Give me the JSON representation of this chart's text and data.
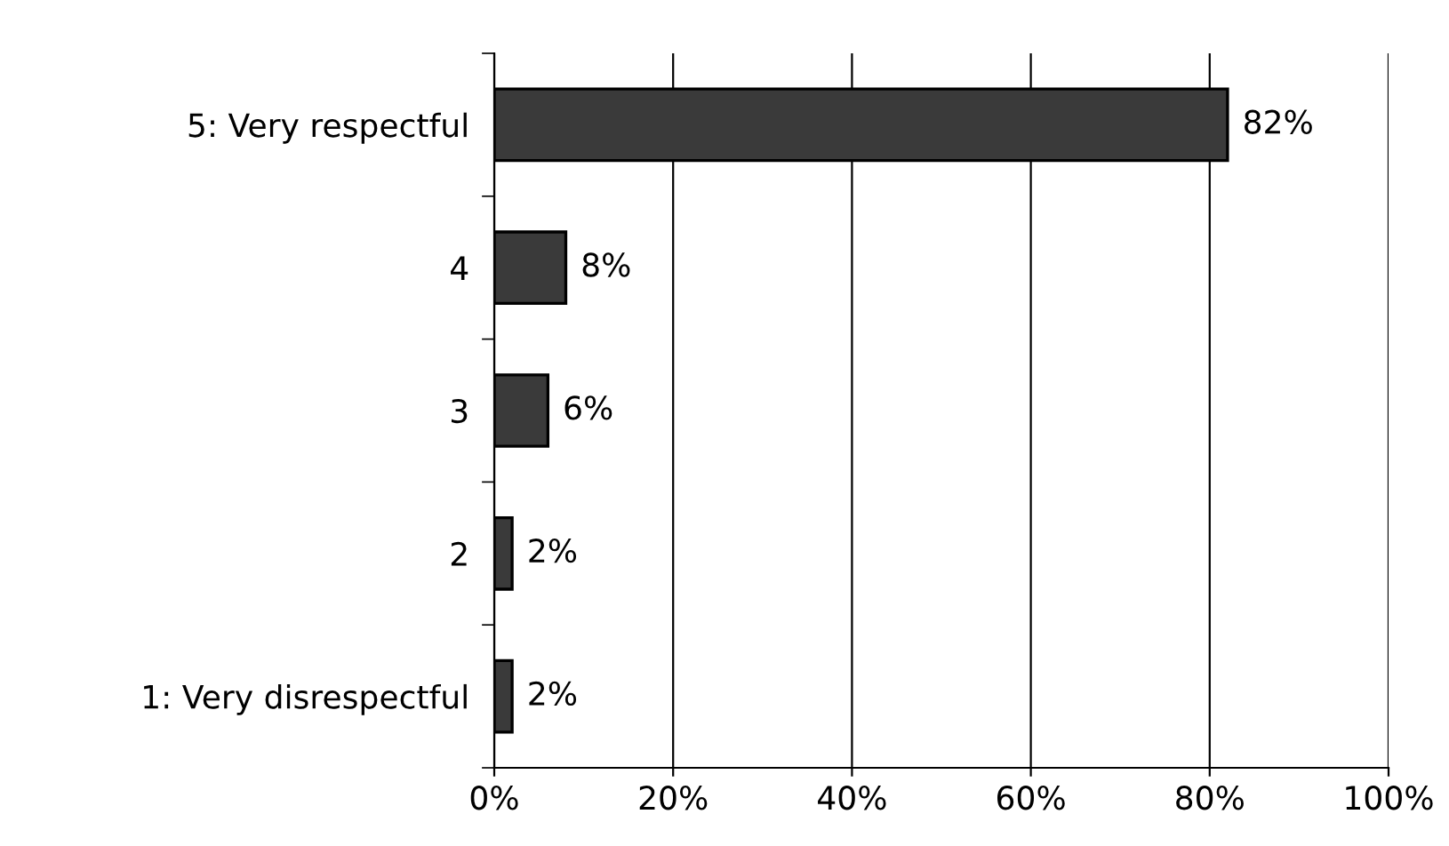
{
  "chart_data": {
    "type": "bar",
    "orientation": "horizontal",
    "categories": [
      "5: Very respectful",
      "4",
      "3",
      "2",
      "1: Very disrespectful"
    ],
    "values": [
      82,
      8,
      6,
      2,
      2
    ],
    "value_labels": [
      "82%",
      "8%",
      "6%",
      "2%",
      "2%"
    ],
    "color": "#3a3a3a",
    "xlim": [
      0,
      100
    ],
    "xticks": [
      {
        "value": 0,
        "label": "0%"
      },
      {
        "value": 20,
        "label": "20%"
      },
      {
        "value": 40,
        "label": "40%"
      },
      {
        "value": 60,
        "label": "60%"
      },
      {
        "value": 80,
        "label": "80%"
      },
      {
        "value": 100,
        "label": "100%"
      }
    ],
    "grid": "x",
    "legend": false
  }
}
